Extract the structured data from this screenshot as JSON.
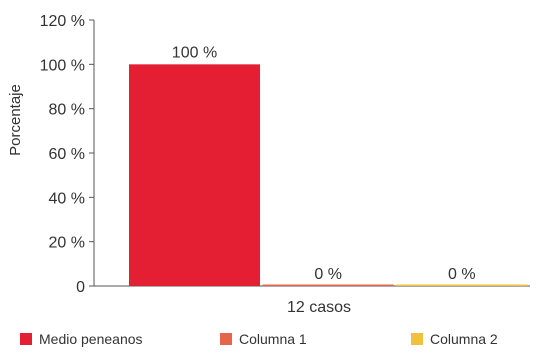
{
  "chart_data": {
    "type": "bar",
    "categories": [
      "12 casos"
    ],
    "series": [
      {
        "name": "Medio peneanos",
        "values": [
          100
        ],
        "color": "#e41f33",
        "label": "100 %"
      },
      {
        "name": "Columna 1",
        "values": [
          0
        ],
        "color": "#e5654d",
        "label": "0 %"
      },
      {
        "name": "Columna 2",
        "values": [
          0
        ],
        "color": "#f1c13c",
        "label": "0 %"
      }
    ],
    "ylabel": "Porcentaje",
    "xlabel": "",
    "ylim": [
      0,
      120
    ],
    "yticks": [
      0,
      20,
      40,
      60,
      80,
      100,
      120
    ],
    "ytick_labels": [
      "0",
      "20 %",
      "40 %",
      "60 %",
      "80 %",
      "100 %",
      "120 %"
    ],
    "grid": false,
    "legend_position": "bottom"
  }
}
